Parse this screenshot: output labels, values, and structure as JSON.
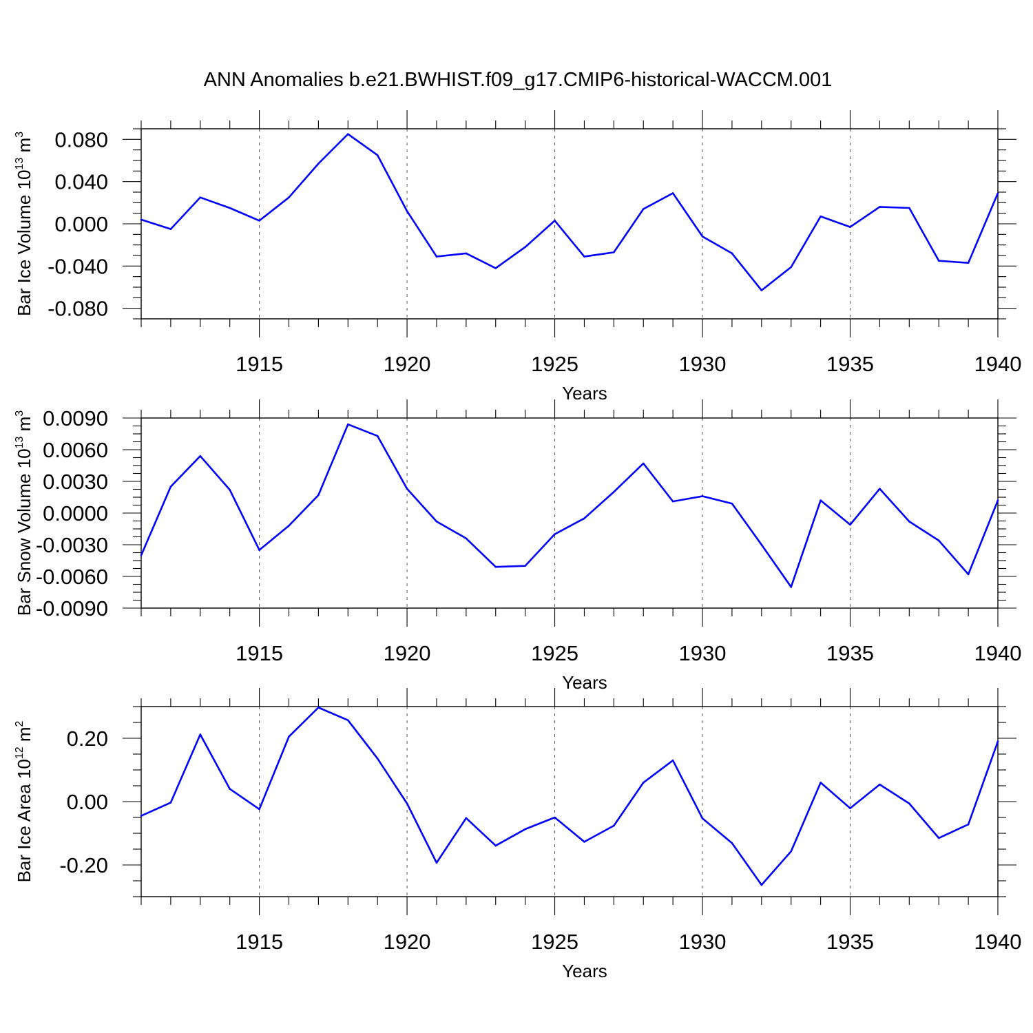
{
  "title": "ANN Anomalies b.e21.BWHIST.f09_g17.CMIP6-historical-WACCM.001",
  "line_color": "#0000ff",
  "chart_data": [
    {
      "type": "line",
      "ylabel": "Bar Ice Volume 10",
      "ylabel_exp": "13",
      "ylabel_unit": " m",
      "ylabel_unit_exp": "3",
      "xlabel": "Years",
      "xlim": [
        1911,
        1940
      ],
      "ylim": [
        -0.09,
        0.09
      ],
      "yticks": [
        -0.08,
        -0.04,
        0.0,
        0.04,
        0.08
      ],
      "ytick_labels": [
        "-0.080",
        "-0.040",
        "0.000",
        "0.040",
        "0.080"
      ],
      "xticks": [
        1915,
        1920,
        1925,
        1930,
        1935,
        1940
      ],
      "xtick_labels": [
        "1915",
        "1920",
        "1925",
        "1930",
        "1935",
        "1940"
      ],
      "grid_x": true,
      "x": [
        1911,
        1912,
        1913,
        1914,
        1915,
        1916,
        1917,
        1918,
        1919,
        1920,
        1921,
        1922,
        1923,
        1924,
        1925,
        1926,
        1927,
        1928,
        1929,
        1930,
        1931,
        1932,
        1933,
        1934,
        1935,
        1936,
        1937,
        1938,
        1939,
        1940
      ],
      "y": [
        0.004,
        -0.005,
        0.025,
        0.015,
        0.003,
        0.025,
        0.057,
        0.085,
        0.065,
        0.012,
        -0.031,
        -0.028,
        -0.042,
        -0.022,
        0.003,
        -0.031,
        -0.027,
        0.014,
        0.029,
        -0.012,
        -0.028,
        -0.063,
        -0.041,
        0.007,
        -0.003,
        0.016,
        0.015,
        -0.035,
        -0.037,
        0.029
      ]
    },
    {
      "type": "line",
      "ylabel": "Bar Snow Volume 10",
      "ylabel_exp": "13",
      "ylabel_unit": " m",
      "ylabel_unit_exp": "3",
      "xlabel": "Years",
      "xlim": [
        1911,
        1940
      ],
      "ylim": [
        -0.009,
        0.009
      ],
      "yticks": [
        -0.009,
        -0.006,
        -0.003,
        0.0,
        0.003,
        0.006,
        0.009
      ],
      "ytick_labels": [
        "-0.0090",
        "-0.0060",
        "-0.0030",
        "0.0000",
        "0.0030",
        "0.0060",
        "0.0090"
      ],
      "xticks": [
        1915,
        1920,
        1925,
        1930,
        1935,
        1940
      ],
      "xtick_labels": [
        "1915",
        "1920",
        "1925",
        "1930",
        "1935",
        "1940"
      ],
      "grid_x": true,
      "x": [
        1911,
        1912,
        1913,
        1914,
        1915,
        1916,
        1917,
        1918,
        1919,
        1920,
        1921,
        1922,
        1923,
        1924,
        1925,
        1926,
        1927,
        1928,
        1929,
        1930,
        1931,
        1932,
        1933,
        1934,
        1935,
        1936,
        1937,
        1938,
        1939,
        1940
      ],
      "y": [
        -0.004,
        0.0025,
        0.0054,
        0.0022,
        -0.0035,
        -0.0012,
        0.0017,
        0.0084,
        0.0073,
        0.0023,
        -0.0008,
        -0.0024,
        -0.0051,
        -0.005,
        -0.002,
        -0.0005,
        0.002,
        0.0047,
        0.0011,
        0.0016,
        0.0009,
        -0.003,
        -0.007,
        0.0012,
        -0.0011,
        0.0023,
        -0.0008,
        -0.0026,
        -0.0058,
        0.0012
      ]
    },
    {
      "type": "line",
      "ylabel": "Bar Ice Area 10",
      "ylabel_exp": "12",
      "ylabel_unit": " m",
      "ylabel_unit_exp": "2",
      "xlabel": "Years",
      "xlim": [
        1911,
        1940
      ],
      "ylim": [
        -0.3,
        0.3
      ],
      "yticks": [
        -0.2,
        0.0,
        0.2
      ],
      "ytick_labels": [
        "-0.20",
        "0.00",
        "0.20"
      ],
      "xticks": [
        1915,
        1920,
        1925,
        1930,
        1935,
        1940
      ],
      "xtick_labels": [
        "1915",
        "1920",
        "1925",
        "1930",
        "1935",
        "1940"
      ],
      "grid_x": true,
      "x": [
        1911,
        1912,
        1913,
        1914,
        1915,
        1916,
        1917,
        1918,
        1919,
        1920,
        1921,
        1922,
        1923,
        1924,
        1925,
        1926,
        1927,
        1928,
        1929,
        1930,
        1931,
        1932,
        1933,
        1934,
        1935,
        1936,
        1937,
        1938,
        1939,
        1940
      ],
      "y": [
        -0.045,
        -0.003,
        0.212,
        0.04,
        -0.024,
        0.205,
        0.297,
        0.257,
        0.136,
        -0.006,
        -0.193,
        -0.052,
        -0.139,
        -0.087,
        -0.05,
        -0.127,
        -0.076,
        0.06,
        0.13,
        -0.053,
        -0.131,
        -0.263,
        -0.157,
        0.06,
        -0.021,
        0.054,
        -0.006,
        -0.115,
        -0.072,
        0.19
      ]
    }
  ]
}
